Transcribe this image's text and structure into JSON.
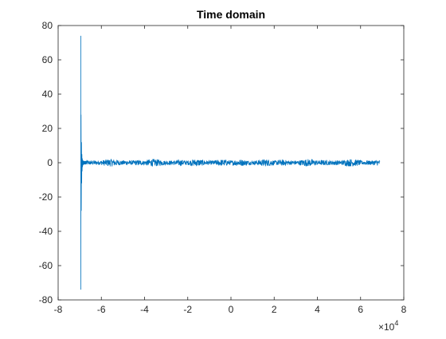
{
  "chart_data": {
    "type": "line",
    "title": "Time domain",
    "xlabel": "",
    "ylabel": "",
    "x_exponent_label": "×10",
    "x_exponent_power": "4",
    "x_multiplier": 10000,
    "xlim": [
      -8,
      8
    ],
    "ylim": [
      -80,
      80
    ],
    "x_ticks": [
      -8,
      -6,
      -4,
      -2,
      0,
      2,
      4,
      6,
      8
    ],
    "x_tick_labels": [
      "-8",
      "-6",
      "-4",
      "-2",
      "0",
      "2",
      "4",
      "6",
      "8"
    ],
    "y_ticks": [
      -80,
      -60,
      -40,
      -20,
      0,
      20,
      40,
      60,
      80
    ],
    "y_tick_labels": [
      "-80",
      "-60",
      "-40",
      "-20",
      "0",
      "20",
      "40",
      "60",
      "80"
    ],
    "grid": false,
    "series": [
      {
        "color": "#0072BD",
        "x": [
          -6.95,
          -6.95,
          -6.94,
          -6.93,
          -6.92,
          -6.91,
          -6.9,
          -6.89,
          -6.88,
          -6.87,
          -6.86,
          -6.85,
          -6.84,
          -6.83,
          -6.82,
          -6.81,
          -6.8,
          -6.79,
          -6.78,
          -6.77,
          -6.76,
          -6.75,
          -6.74,
          -6.73,
          -6.72,
          -6.71,
          -6.7
        ],
        "y": [
          74,
          -74,
          28,
          -28,
          12,
          -12,
          5,
          -5,
          2.5,
          -2.5,
          1.5,
          -1.5,
          1.2,
          -1.2,
          1.0,
          -1.0,
          1.0,
          -1.0,
          1.0,
          -1.0,
          1.0,
          -1.0,
          1.0,
          -1.0,
          1.0,
          -1.0,
          1.0
        ],
        "noise_x_range": [
          -6.7,
          6.9
        ],
        "noise_amplitude": 2.2
      }
    ]
  }
}
